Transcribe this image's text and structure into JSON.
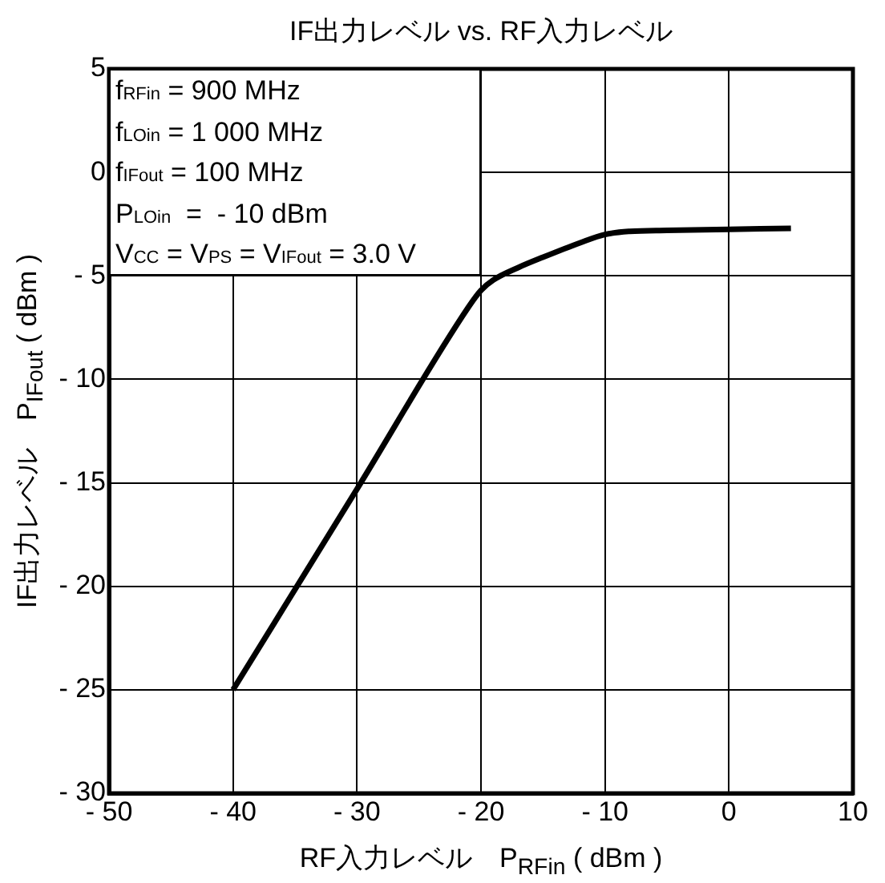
{
  "chart_data": {
    "type": "line",
    "title": "IF出力レベル vs. RF入力レベル",
    "xlabel": "RF入力レベル　P$_{RFin}$ ( dBm )",
    "ylabel": "IF出力レベル　P$_{IFout}$ ( dBm )",
    "x": [
      -40,
      -30,
      -21,
      -20,
      -19,
      -17,
      -15,
      -12,
      -10,
      -8,
      -5,
      0,
      5
    ],
    "series": [
      {
        "color": "#000000",
        "values": [
          -25,
          -15.3,
          -6.5,
          -5.7,
          -5.2,
          -4.6,
          -4.1,
          -3.4,
          -3.0,
          -2.85,
          -2.8,
          -2.75,
          -2.7
        ]
      }
    ],
    "xlim": [
      -50,
      10
    ],
    "ylim": [
      -30,
      5
    ],
    "xticks": [
      {
        "value": -50,
        "label": "- 50"
      },
      {
        "value": -40,
        "label": "- 40"
      },
      {
        "value": -30,
        "label": "- 30"
      },
      {
        "value": -20,
        "label": "- 20"
      },
      {
        "value": -10,
        "label": "- 10"
      },
      0,
      10
    ],
    "yticks": [
      {
        "value": -30,
        "label": "- 30"
      },
      {
        "value": -25,
        "label": "- 25"
      },
      {
        "value": -20,
        "label": "- 20"
      },
      {
        "value": -15,
        "label": "- 15"
      },
      {
        "value": -10,
        "label": "- 10"
      },
      {
        "value": -5,
        "label": "- 5"
      },
      0,
      5
    ],
    "annotations": [
      "f$_{RFin}$ = 900 MHz",
      "f$_{LOin}$ = 1 000 MHz",
      "f$_{IFout}$ = 100 MHz",
      "P$_{LOin}$  =  - 10 dBm",
      "V$_{CC}$ = V$_{PS}$ = V$_{IFout}$ = 3.0 V"
    ],
    "grid": true,
    "legend": false,
    "marker": "none",
    "line_style": "solid"
  }
}
